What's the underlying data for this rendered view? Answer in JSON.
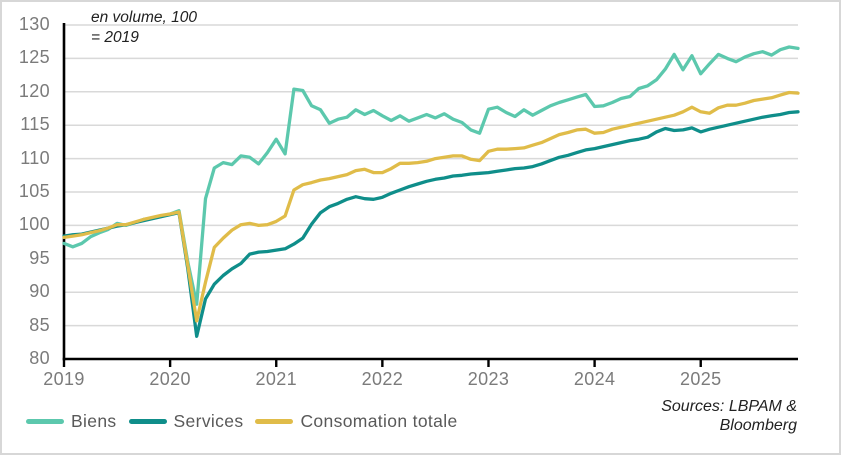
{
  "chart_data": {
    "type": "line",
    "title_annotation": "en volume, 100\n= 2019",
    "source_note": "Sources: LBPAM &\nBloomberg",
    "x_unit": "month",
    "x_range": [
      "2019-01",
      "2025-12"
    ],
    "x_tick_labels": [
      "2019",
      "2020",
      "2021",
      "2022",
      "2023",
      "2024",
      "2025"
    ],
    "y_ticks": [
      80,
      85,
      90,
      95,
      100,
      105,
      110,
      115,
      120,
      125,
      130
    ],
    "ylim": [
      80,
      130
    ],
    "grid": "horizontal-only",
    "legend_position": "bottom-left",
    "grid_color": "#d9d9d9",
    "axis_color": "#000000",
    "tick_label_color": "#7b7b7b",
    "legend_text_color": "#595959",
    "series": [
      {
        "name": "Biens",
        "color": "#5cc8ad",
        "values": [
          97.3,
          96.8,
          97.3,
          98.3,
          98.9,
          99.4,
          100.3,
          100.0,
          100.4,
          100.9,
          101.1,
          101.4,
          101.7,
          102.2,
          94.5,
          88.2,
          104.0,
          108.6,
          109.4,
          109.1,
          110.4,
          110.2,
          109.2,
          110.9,
          112.9,
          110.7,
          120.4,
          120.2,
          117.9,
          117.3,
          115.3,
          115.9,
          116.2,
          117.3,
          116.6,
          117.2,
          116.4,
          115.7,
          116.4,
          115.6,
          116.1,
          116.6,
          116.1,
          116.7,
          115.9,
          115.4,
          114.3,
          113.8,
          117.4,
          117.7,
          116.9,
          116.3,
          117.3,
          116.5,
          117.2,
          117.9,
          118.4,
          118.8,
          119.2,
          119.6,
          117.8,
          117.9,
          118.4,
          119.0,
          119.3,
          120.5,
          120.9,
          121.8,
          123.4,
          125.6,
          123.3,
          125.4,
          122.7,
          124.2,
          125.6,
          125.0,
          124.5,
          125.2,
          125.7,
          126.0,
          125.5,
          126.3,
          126.7,
          126.5
        ]
      },
      {
        "name": "Services",
        "color": "#0f8e8a",
        "values": [
          98.4,
          98.6,
          98.7,
          99.0,
          99.3,
          99.6,
          99.9,
          100.1,
          100.4,
          100.7,
          101.0,
          101.3,
          101.6,
          101.9,
          93.5,
          83.4,
          89.0,
          91.2,
          92.5,
          93.5,
          94.3,
          95.7,
          96.0,
          96.1,
          96.3,
          96.5,
          97.2,
          98.1,
          100.2,
          101.9,
          102.8,
          103.3,
          103.9,
          104.3,
          104.0,
          103.9,
          104.2,
          104.8,
          105.3,
          105.8,
          106.2,
          106.6,
          106.9,
          107.1,
          107.4,
          107.5,
          107.7,
          107.8,
          107.9,
          108.1,
          108.3,
          108.5,
          108.6,
          108.8,
          109.2,
          109.7,
          110.2,
          110.5,
          110.9,
          111.3,
          111.5,
          111.8,
          112.1,
          112.4,
          112.7,
          112.9,
          113.2,
          114.0,
          114.5,
          114.2,
          114.3,
          114.6,
          114.0,
          114.4,
          114.7,
          115.0,
          115.3,
          115.6,
          115.9,
          116.2,
          116.4,
          116.6,
          116.9,
          117.0
        ]
      },
      {
        "name": "Consomation totale",
        "color": "#e0bc49",
        "values": [
          98.2,
          98.4,
          98.6,
          98.9,
          99.2,
          99.6,
          100.1,
          100.1,
          100.5,
          100.9,
          101.2,
          101.5,
          101.7,
          102.0,
          94.0,
          85.7,
          91.5,
          96.7,
          98.1,
          99.3,
          100.1,
          100.3,
          100.0,
          100.1,
          100.6,
          101.4,
          105.3,
          106.1,
          106.4,
          106.8,
          107.0,
          107.3,
          107.6,
          108.2,
          108.4,
          107.9,
          107.9,
          108.5,
          109.3,
          109.3,
          109.4,
          109.6,
          110.0,
          110.2,
          110.4,
          110.4,
          109.9,
          109.7,
          111.1,
          111.4,
          111.4,
          111.5,
          111.6,
          112.0,
          112.4,
          113.0,
          113.6,
          113.9,
          114.3,
          114.4,
          113.8,
          113.9,
          114.4,
          114.7,
          115.0,
          115.3,
          115.6,
          115.9,
          116.2,
          116.5,
          117.0,
          117.7,
          117.0,
          116.8,
          117.6,
          118.0,
          118.0,
          118.3,
          118.7,
          118.9,
          119.1,
          119.5,
          119.9,
          119.8
        ]
      }
    ]
  }
}
